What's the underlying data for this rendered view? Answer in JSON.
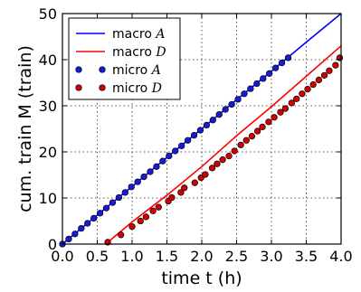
{
  "chart_data": {
    "type": "line",
    "xlabel": "time t (h)",
    "ylabel": "cum. train M (train)",
    "xlim": [
      0.0,
      4.0
    ],
    "ylim": [
      0,
      50
    ],
    "xticks": [
      "0.0",
      "0.5",
      "1.0",
      "1.5",
      "2.0",
      "2.5",
      "3.0",
      "3.5",
      "4.0"
    ],
    "yticks": [
      "0",
      "10",
      "20",
      "30",
      "40",
      "50"
    ],
    "grid": true,
    "legend_position": "top-left",
    "colors": {
      "blue": "#0000ff",
      "red": "#ff0000",
      "blue_marker": "#1a1ad9",
      "red_marker": "#d40000"
    },
    "series": [
      {
        "name": "macro A",
        "kind": "line",
        "color": "#0000ff",
        "x": [
          0.0,
          0.5,
          1.0,
          1.5,
          2.0,
          2.5,
          3.0,
          3.5,
          4.0
        ],
        "y": [
          0,
          6.3,
          12.5,
          18.8,
          25.0,
          31.3,
          37.5,
          43.8,
          50.0
        ]
      },
      {
        "name": "macro D",
        "kind": "line",
        "color": "#ff0000",
        "x": [
          0.62,
          1.0,
          1.5,
          2.0,
          2.5,
          3.0,
          3.5,
          4.0
        ],
        "y": [
          0,
          4.8,
          10.6,
          16.8,
          23.5,
          29.8,
          36.4,
          43.0
        ]
      },
      {
        "name": "micro A",
        "kind": "markers",
        "color": "#1a1ad9",
        "x": [
          0.0,
          0.09,
          0.18,
          0.27,
          0.36,
          0.45,
          0.54,
          0.63,
          0.72,
          0.81,
          0.9,
          0.99,
          1.08,
          1.17,
          1.26,
          1.35,
          1.44,
          1.53,
          1.62,
          1.71,
          1.8,
          1.89,
          1.98,
          2.07,
          2.16,
          2.25,
          2.34,
          2.43,
          2.52,
          2.61,
          2.7,
          2.79,
          2.88,
          2.97,
          3.06,
          3.15,
          3.24
        ],
        "y": [
          0,
          1.1,
          2.2,
          3.4,
          4.5,
          5.6,
          6.7,
          7.8,
          9.0,
          10.1,
          11.2,
          12.4,
          13.5,
          14.6,
          15.7,
          16.8,
          18.0,
          19.1,
          20.2,
          21.3,
          22.5,
          23.6,
          24.7,
          25.8,
          26.9,
          28.1,
          29.2,
          30.3,
          31.4,
          32.6,
          33.7,
          34.8,
          35.9,
          37.0,
          38.2,
          39.3,
          40.4
        ]
      },
      {
        "name": "micro D",
        "kind": "markers",
        "color": "#d40000",
        "x": [
          0.65,
          0.84,
          1.0,
          1.12,
          1.2,
          1.3,
          1.38,
          1.52,
          1.57,
          1.7,
          1.75,
          1.9,
          1.99,
          2.05,
          2.15,
          2.22,
          2.3,
          2.39,
          2.47,
          2.56,
          2.64,
          2.72,
          2.8,
          2.87,
          2.96,
          3.04,
          3.13,
          3.2,
          3.29,
          3.36,
          3.44,
          3.52,
          3.6,
          3.68,
          3.76,
          3.83,
          3.92,
          3.98
        ],
        "y": [
          0.4,
          2.0,
          3.8,
          5.0,
          5.9,
          7.2,
          8.0,
          9.3,
          10.1,
          11.2,
          12.2,
          13.3,
          14.4,
          15.1,
          16.5,
          17.4,
          18.3,
          19.1,
          20.2,
          21.5,
          22.5,
          23.4,
          24.5,
          25.4,
          26.5,
          27.5,
          28.6,
          29.4,
          30.6,
          31.5,
          32.6,
          33.6,
          34.6,
          35.6,
          36.6,
          37.6,
          38.8,
          40.4
        ]
      }
    ]
  }
}
